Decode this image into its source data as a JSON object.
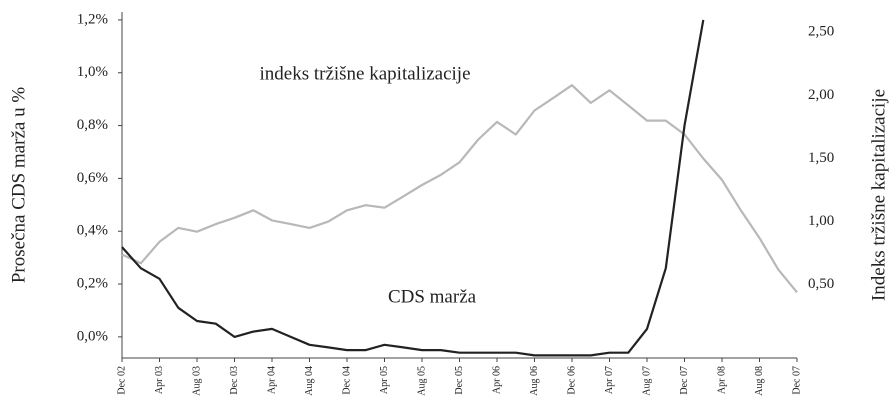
{
  "chart_data": {
    "type": "line",
    "y_label": "Prosečna CDS marža u %",
    "y2_label": "Indeks tržišne kapitalizacije",
    "categories": [
      "Dec 02",
      null,
      "Apr 03",
      null,
      "Aug 03",
      null,
      "Dec 03",
      null,
      "Apr 04",
      null,
      "Aug 04",
      null,
      "Dec 04",
      null,
      "Apr 05",
      null,
      "Aug 05",
      null,
      "Dec 05",
      null,
      "Apr 06",
      null,
      "Aug 06",
      null,
      "Dec 06",
      null,
      "Apr 07",
      null,
      "Aug 07",
      null,
      "Dec 07",
      null,
      "Apr 08",
      null,
      "Aug 08",
      null,
      "Dec 07"
    ],
    "ylim": [
      -0.08,
      1.23
    ],
    "yticks": [
      {
        "value": 0,
        "label": "0,0%"
      },
      {
        "value": 0.2,
        "label": "0,2%"
      },
      {
        "value": 0.4,
        "label": "0,4%"
      },
      {
        "value": 0.6,
        "label": "0,6%"
      },
      {
        "value": 0.8,
        "label": "0,8%"
      },
      {
        "value": 1.0,
        "label": "1,0%"
      },
      {
        "value": 1.2,
        "label": "1,2%"
      }
    ],
    "y2lim": [
      -0.08,
      2.66
    ],
    "y2ticks": [
      {
        "value": 0.5,
        "label": "0,50"
      },
      {
        "value": 1.0,
        "label": "1,00"
      },
      {
        "value": 1.5,
        "label": "1,50"
      },
      {
        "value": 2.0,
        "label": "2,00"
      },
      {
        "value": 2.5,
        "label": "2,50"
      }
    ],
    "series": [
      {
        "name": "indeks tržišne kapitalizacije",
        "color": "#b8b8b8",
        "axis": "y2",
        "values": [
          0.74,
          0.67,
          0.84,
          0.95,
          0.92,
          0.98,
          1.03,
          1.09,
          1.01,
          0.98,
          0.95,
          1.0,
          1.09,
          1.13,
          1.11,
          1.2,
          1.29,
          1.37,
          1.47,
          1.65,
          1.79,
          1.69,
          1.88,
          1.98,
          2.08,
          1.94,
          2.04,
          1.92,
          1.8,
          1.8,
          1.69,
          1.5,
          1.33,
          1.09,
          0.87,
          0.62,
          0.44
        ]
      },
      {
        "name": "CDS marža",
        "color": "#222222",
        "values": [
          0.34,
          0.26,
          0.22,
          0.11,
          0.06,
          0.05,
          0.0,
          0.02,
          0.03,
          0.0,
          -0.03,
          -0.04,
          -0.05,
          -0.05,
          -0.03,
          -0.04,
          -0.05,
          -0.05,
          -0.06,
          -0.06,
          -0.06,
          -0.06,
          -0.07,
          -0.07,
          -0.07,
          -0.07,
          -0.06,
          -0.06,
          0.03,
          0.26,
          0.8,
          1.2,
          null,
          null,
          null,
          null,
          null
        ]
      }
    ]
  }
}
